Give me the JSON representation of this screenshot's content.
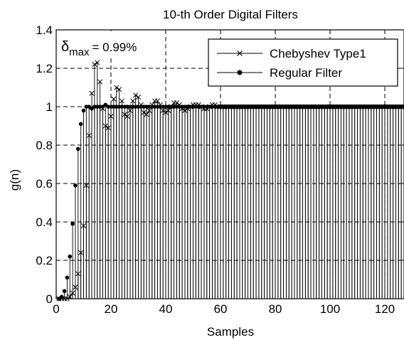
{
  "chart_data": {
    "type": "stem",
    "title": "10-th Order Digital Filters",
    "xlabel": "Samples",
    "ylabel": "g(n)",
    "xlim": [
      0,
      127
    ],
    "ylim": [
      0,
      1.4
    ],
    "xticks": [
      0,
      20,
      40,
      60,
      80,
      100,
      120
    ],
    "yticks": [
      0,
      0.2,
      0.4,
      0.6,
      0.8,
      1,
      1.2,
      1.4
    ],
    "grid": true,
    "legend_position": "top-right",
    "annotation": {
      "symbol": "δ",
      "subscript": "max",
      "text": "= 0.99%"
    },
    "series": [
      {
        "name": "Chebyshev Type1",
        "marker": "x",
        "values": [
          0,
          0,
          0,
          0,
          0.01,
          0.03,
          0.06,
          0.13,
          0.24,
          0.38,
          0.59,
          0.85,
          1.07,
          1.22,
          1.23,
          1.13,
          0.99,
          0.9,
          0.89,
          0.95,
          1.04,
          1.1,
          1.09,
          1.03,
          0.96,
          0.95,
          0.98,
          1.03,
          1.06,
          1.05,
          1.01,
          0.97,
          0.96,
          0.98,
          1.01,
          1.03,
          1.03,
          1.01,
          0.98,
          0.97,
          0.98,
          1.0,
          1.02,
          1.02,
          1.01,
          0.99,
          0.98,
          0.99,
          1.0,
          1.01,
          1.01,
          1.01,
          1.0,
          0.99,
          0.99,
          1.0,
          1.01,
          1.01,
          1.0,
          1.0,
          1.0,
          1.0,
          1.0,
          1.0,
          1.0,
          1.0,
          1.0,
          1.0,
          1.0,
          1.0,
          1.0,
          1.0,
          1.0,
          1.0,
          1.0,
          1.0,
          1.0,
          1.0,
          1.0,
          1.0,
          1.0,
          1.0,
          1.0,
          1.0,
          1.0,
          1.0,
          1.0,
          1.0,
          1.0,
          1.0,
          1.0,
          1.0,
          1.0,
          1.0,
          1.0,
          1.0,
          1.0,
          1.0,
          1.0,
          1.0,
          1.0,
          1.0,
          1.0,
          1.0,
          1.0,
          1.0,
          1.0,
          1.0,
          1.0,
          1.0,
          1.0,
          1.0,
          1.0,
          1.0,
          1.0,
          1.0,
          1.0,
          1.0,
          1.0,
          1.0,
          1.0,
          1.0,
          1.0,
          1.0,
          1.0,
          1.0,
          1.0,
          1.0
        ]
      },
      {
        "name": "Regular Filter",
        "marker": "dot",
        "values": [
          0,
          0.01,
          0.04,
          0.11,
          0.22,
          0.39,
          0.59,
          0.78,
          0.91,
          0.98,
          1.0,
          1.0,
          0.99,
          1.0,
          1.0,
          1.0,
          1.0,
          1.01,
          1.0,
          1.0,
          1.0,
          1.0,
          1.0,
          1.0,
          1.0,
          1.0,
          1.0,
          1.0,
          1.0,
          1.0,
          1.0,
          1.0,
          1.0,
          1.0,
          1.0,
          1.0,
          1.0,
          1.0,
          1.0,
          1.0,
          1.0,
          1.0,
          1.0,
          1.0,
          1.0,
          1.0,
          1.0,
          1.0,
          1.0,
          1.0,
          1.0,
          1.0,
          1.0,
          1.0,
          1.0,
          1.0,
          1.0,
          1.0,
          1.0,
          1.0,
          1.0,
          1.0,
          1.0,
          1.0,
          1.0,
          1.0,
          1.0,
          1.0,
          1.0,
          1.0,
          1.0,
          1.0,
          1.0,
          1.0,
          1.0,
          1.0,
          1.0,
          1.0,
          1.0,
          1.0,
          1.0,
          1.0,
          1.0,
          1.0,
          1.0,
          1.0,
          1.0,
          1.0,
          1.0,
          1.0,
          1.0,
          1.0,
          1.0,
          1.0,
          1.0,
          1.0,
          1.0,
          1.0,
          1.0,
          1.0,
          1.0,
          1.0,
          1.0,
          1.0,
          1.0,
          1.0,
          1.0,
          1.0,
          1.0,
          1.0,
          1.0,
          1.0,
          1.0,
          1.0,
          1.0,
          1.0,
          1.0,
          1.0,
          1.0,
          1.0,
          1.0,
          1.0,
          1.0,
          1.0,
          1.0,
          1.0,
          1.0,
          1.0
        ]
      }
    ],
    "colors": {
      "line": "#000000",
      "background": "#ffffff"
    }
  }
}
